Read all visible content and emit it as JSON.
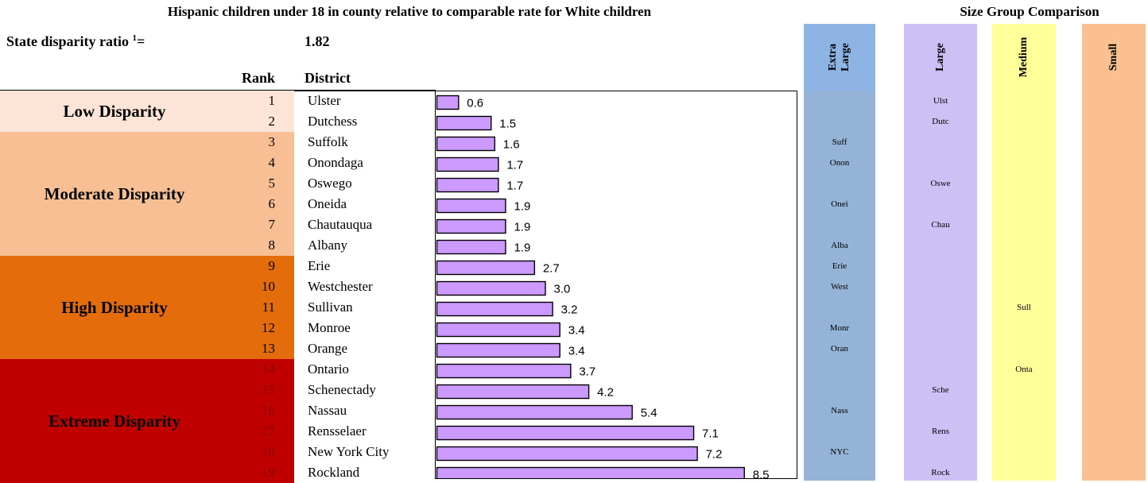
{
  "title": "Hispanic children under 18 in county relative to comparable rate for White children",
  "size_group_title": "Size Group Comparison",
  "state_ratio": {
    "label": "State disparity ratio",
    "sup": "1",
    "suffix": "=",
    "value": "1.82"
  },
  "headers": {
    "rank": "Rank",
    "district": "District"
  },
  "bands": [
    {
      "label": "Low Disparity",
      "from": 0,
      "to": 2,
      "color": "#fce4d6",
      "rank_color": "#000000"
    },
    {
      "label": "Moderate Disparity",
      "from": 2,
      "to": 8,
      "color": "#f8bf95",
      "rank_color": "#000000"
    },
    {
      "label": "High Disparity",
      "from": 8,
      "to": 13,
      "color": "#e46c0a",
      "rank_color": "#000000"
    },
    {
      "label": "Extreme Disparity",
      "from": 13,
      "to": 19,
      "color": "#c00000",
      "rank_color": "#8b0000"
    }
  ],
  "size_groups": [
    {
      "label": "Extra\nLarge",
      "color": "#95b3d7",
      "header_color": "#8db4e2"
    },
    {
      "label": "Large",
      "color": "#ccc0f5",
      "header_color": "#ccc0f5"
    },
    {
      "label": "Medium",
      "color": "#ffff99",
      "header_color": "#ffff99"
    },
    {
      "label": "Small",
      "color": "#fac090",
      "header_color": "#fac090"
    }
  ],
  "chart_data": {
    "type": "bar",
    "orientation": "horizontal",
    "bar_color": "#cc99ff",
    "xlim": [
      0,
      9
    ],
    "categories": [
      "Ulster",
      "Dutchess",
      "Suffolk",
      "Onondaga",
      "Oswego",
      "Oneida",
      "Chautauqua",
      "Albany",
      "Erie",
      "Westchester",
      "Sullivan",
      "Monroe",
      "Orange",
      "Ontario",
      "Schenectady",
      "Nassau",
      "Rensselaer",
      "New York City",
      "Rockland"
    ],
    "values": [
      0.6,
      1.5,
      1.6,
      1.7,
      1.7,
      1.9,
      1.9,
      1.9,
      2.7,
      3.0,
      3.2,
      3.4,
      3.4,
      3.7,
      4.2,
      5.4,
      7.1,
      7.2,
      8.5
    ],
    "value_labels": [
      "0.6",
      "1.5",
      "1.6",
      "1.7",
      "1.7",
      "1.9",
      "1.9",
      "1.9",
      "2.7",
      "3.0",
      "3.2",
      "3.4",
      "3.4",
      "3.7",
      "4.2",
      "5.4",
      "7.1",
      "7.2",
      "8.5"
    ]
  },
  "rows": [
    {
      "rank": "1",
      "district": "Ulster",
      "abbr": "Ulst",
      "group": 1
    },
    {
      "rank": "2",
      "district": "Dutchess",
      "abbr": "Dutc",
      "group": 1
    },
    {
      "rank": "3",
      "district": "Suffolk",
      "abbr": "Suff",
      "group": 0
    },
    {
      "rank": "4",
      "district": "Onondaga",
      "abbr": "Onon",
      "group": 0
    },
    {
      "rank": "5",
      "district": "Oswego",
      "abbr": "Oswe",
      "group": 1
    },
    {
      "rank": "6",
      "district": "Oneida",
      "abbr": "Onei",
      "group": 0
    },
    {
      "rank": "7",
      "district": "Chautauqua",
      "abbr": "Chau",
      "group": 1
    },
    {
      "rank": "8",
      "district": "Albany",
      "abbr": "Alba",
      "group": 0
    },
    {
      "rank": "9",
      "district": "Erie",
      "abbr": "Erie",
      "group": 0
    },
    {
      "rank": "10",
      "district": "Westchester",
      "abbr": "West",
      "group": 0
    },
    {
      "rank": "11",
      "district": "Sullivan",
      "abbr": "Sull",
      "group": 2
    },
    {
      "rank": "12",
      "district": "Monroe",
      "abbr": "Monr",
      "group": 0
    },
    {
      "rank": "13",
      "district": "Orange",
      "abbr": "Oran",
      "group": 0
    },
    {
      "rank": "14",
      "district": "Ontario",
      "abbr": "Onta",
      "group": 2
    },
    {
      "rank": "15",
      "district": "Schenectady",
      "abbr": "Sche",
      "group": 1
    },
    {
      "rank": "16",
      "district": "Nassau",
      "abbr": "Nass",
      "group": 0
    },
    {
      "rank": "17",
      "district": "Rensselaer",
      "abbr": "Rens",
      "group": 1
    },
    {
      "rank": "18",
      "district": "New York City",
      "abbr": "NYC",
      "group": 0
    },
    {
      "rank": "19",
      "district": "Rockland",
      "abbr": "Rock",
      "group": 1
    }
  ]
}
